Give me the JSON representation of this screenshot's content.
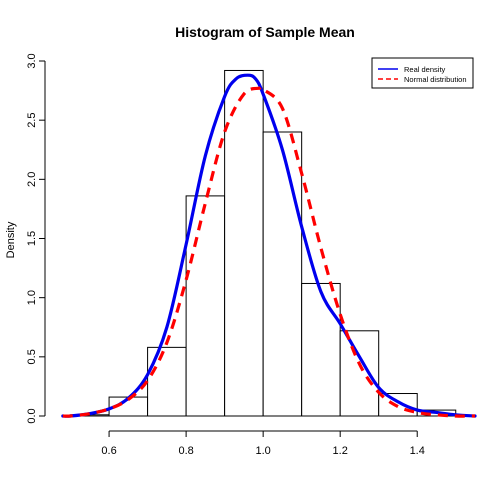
{
  "chart_data": {
    "type": "histogram",
    "title": "Histogram of Sample Mean",
    "xlabel": "",
    "ylabel": "Density",
    "xlim": [
      0.47,
      1.55
    ],
    "ylim": [
      0,
      3.0
    ],
    "x_ticks": [
      0.6,
      0.8,
      1.0,
      1.2,
      1.4
    ],
    "x_tick_labels": [
      "0.6",
      "0.8",
      "1.0",
      "1.2",
      "1.4"
    ],
    "y_ticks": [
      0.0,
      0.5,
      1.0,
      1.5,
      2.0,
      2.5,
      3.0
    ],
    "y_tick_labels": [
      "0.0",
      "0.5",
      "1.0",
      "1.5",
      "2.0",
      "2.5",
      "3.0"
    ],
    "bins": [
      {
        "start": 0.5,
        "end": 0.6,
        "density": 0.01
      },
      {
        "start": 0.6,
        "end": 0.7,
        "density": 0.16
      },
      {
        "start": 0.7,
        "end": 0.8,
        "density": 0.58
      },
      {
        "start": 0.8,
        "end": 0.9,
        "density": 1.86
      },
      {
        "start": 0.9,
        "end": 1.0,
        "density": 2.92
      },
      {
        "start": 1.0,
        "end": 1.1,
        "density": 2.4
      },
      {
        "start": 1.1,
        "end": 1.2,
        "density": 1.12
      },
      {
        "start": 1.2,
        "end": 1.3,
        "density": 0.72
      },
      {
        "start": 1.3,
        "end": 1.4,
        "density": 0.19
      },
      {
        "start": 1.4,
        "end": 1.5,
        "density": 0.05
      }
    ],
    "series": [
      {
        "name": "Real density",
        "color": "#0000ee",
        "style": "solid",
        "x": [
          0.48,
          0.5,
          0.55,
          0.6,
          0.65,
          0.7,
          0.75,
          0.8,
          0.85,
          0.9,
          0.93,
          0.96,
          0.98,
          1.0,
          1.05,
          1.1,
          1.15,
          1.2,
          1.25,
          1.3,
          1.35,
          1.4,
          1.45,
          1.5,
          1.55
        ],
        "y": [
          0.0,
          0.0,
          0.02,
          0.06,
          0.15,
          0.35,
          0.75,
          1.45,
          2.2,
          2.7,
          2.85,
          2.88,
          2.85,
          2.72,
          2.25,
          1.6,
          1.05,
          0.78,
          0.5,
          0.24,
          0.12,
          0.05,
          0.03,
          0.01,
          0.0
        ]
      },
      {
        "name": "Normal distribution",
        "color": "#ff0000",
        "style": "dashed",
        "x": [
          0.48,
          0.5,
          0.55,
          0.6,
          0.65,
          0.7,
          0.75,
          0.8,
          0.85,
          0.9,
          0.95,
          0.99,
          1.0,
          1.05,
          1.1,
          1.15,
          1.2,
          1.25,
          1.3,
          1.35,
          1.4,
          1.45,
          1.5,
          1.55
        ],
        "y": [
          0.0,
          0.0,
          0.02,
          0.06,
          0.14,
          0.3,
          0.62,
          1.15,
          1.8,
          2.4,
          2.72,
          2.77,
          2.76,
          2.6,
          2.05,
          1.42,
          0.86,
          0.44,
          0.2,
          0.08,
          0.03,
          0.01,
          0.0,
          0.0
        ]
      }
    ],
    "legend": {
      "position": "top-right",
      "entries": [
        {
          "label": "Real density",
          "color": "#0000ee",
          "style": "solid"
        },
        {
          "label": "Normal distribution",
          "color": "#ff0000",
          "style": "dashed"
        }
      ]
    },
    "grid": false
  }
}
